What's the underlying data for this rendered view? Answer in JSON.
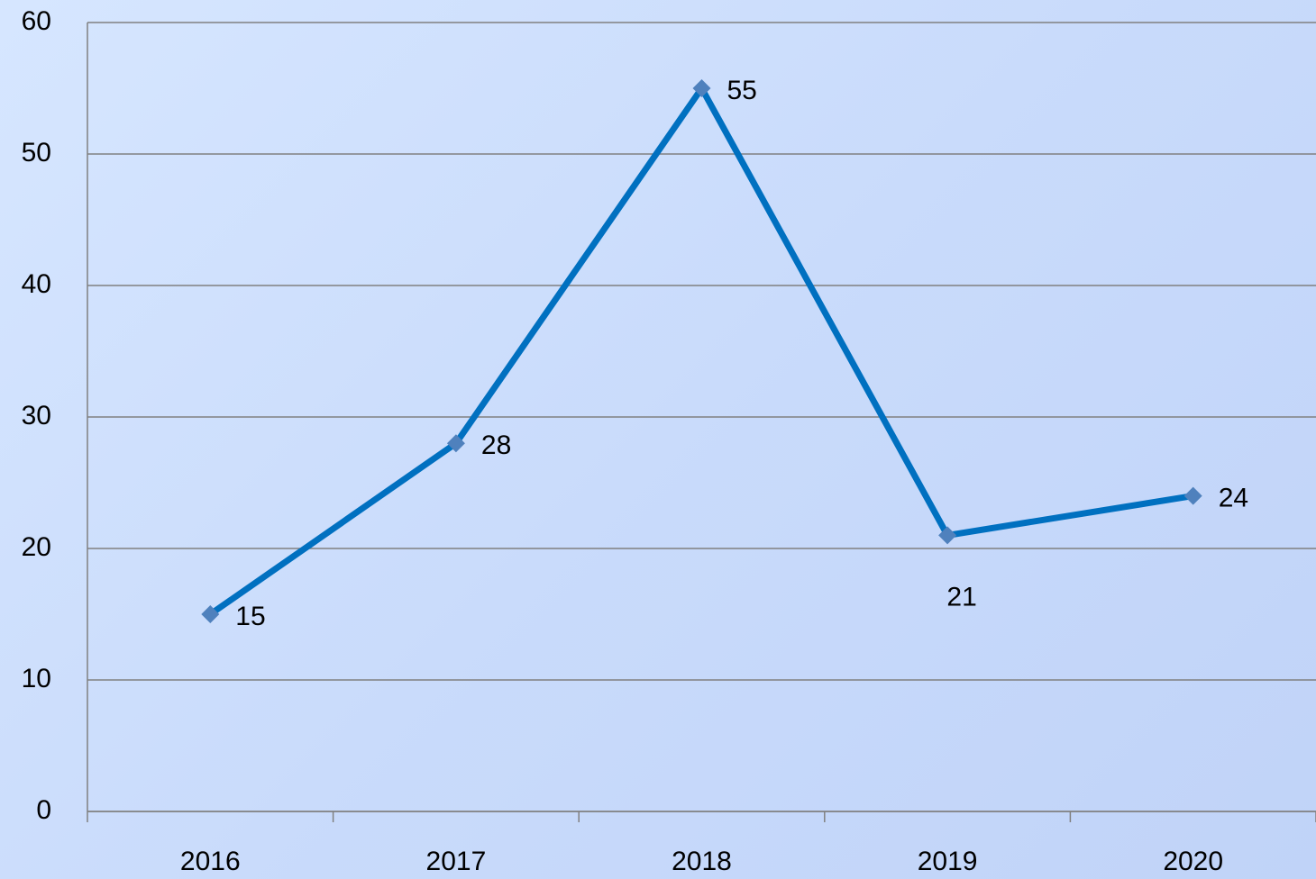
{
  "chart_data": {
    "type": "line",
    "categories": [
      "2016",
      "2017",
      "2018",
      "2019",
      "2020"
    ],
    "series": [
      {
        "values": [
          15,
          28,
          55,
          21,
          24
        ],
        "color": "#0070c0",
        "marker_color": "#4f81bd"
      }
    ],
    "ylim": [
      0,
      60
    ],
    "yticks": [
      0,
      10,
      20,
      30,
      40,
      50,
      60
    ],
    "grid": true
  }
}
